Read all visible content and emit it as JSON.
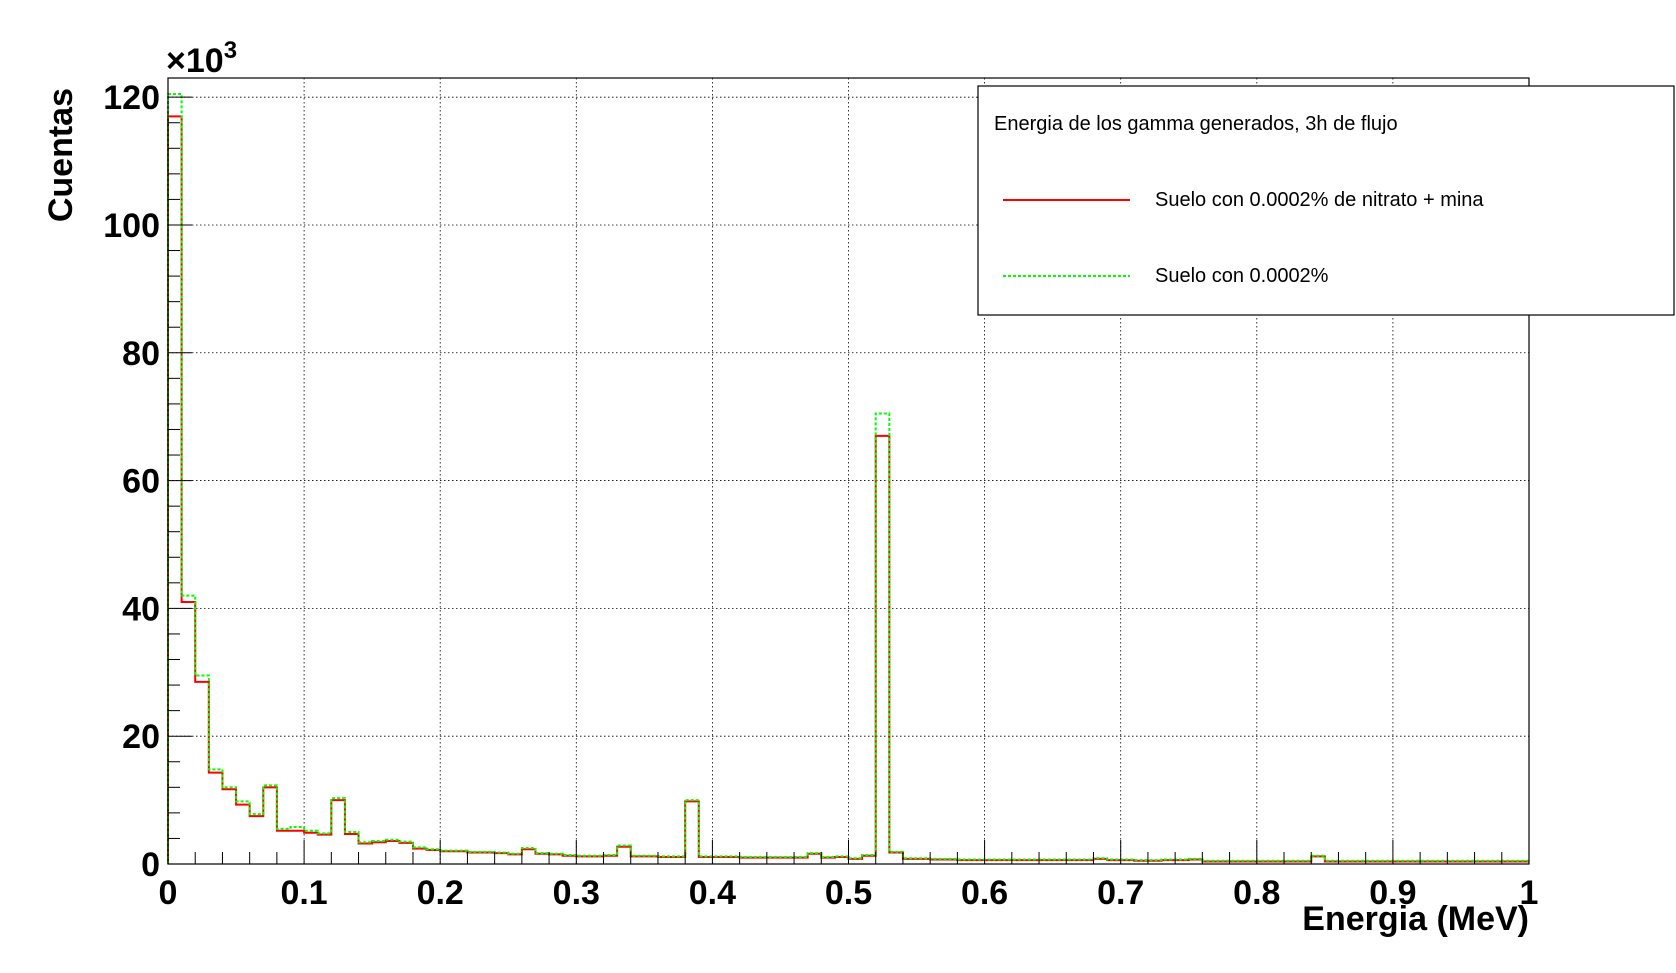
{
  "chart_data": {
    "type": "line",
    "step": true,
    "xlabel": "Energia (MeV)",
    "ylabel": "Cuentas",
    "y_multiplier_label": "×10",
    "y_multiplier_exponent": "3",
    "xlim": [
      0,
      1
    ],
    "ylim": [
      0,
      123
    ],
    "grid": true,
    "legend_position": "top-right",
    "x_ticks": [
      0,
      0.1,
      0.2,
      0.3,
      0.4,
      0.5,
      0.6,
      0.7,
      0.8,
      0.9,
      1
    ],
    "x_tick_labels": [
      "0",
      "0.1",
      "0.2",
      "0.3",
      "0.4",
      "0.5",
      "0.6",
      "0.7",
      "0.8",
      "0.9",
      "1"
    ],
    "y_ticks": [
      0,
      20,
      40,
      60,
      80,
      100,
      120
    ],
    "y_tick_labels": [
      "0",
      "20",
      "40",
      "60",
      "80",
      "100",
      "120"
    ],
    "legend": {
      "title": "Energia de los gamma generados, 3h de flujo"
    },
    "bin_edges_start": 0,
    "bin_width": 0.01,
    "series": [
      {
        "name": "Suelo con 0.0002% de nitrato + mina",
        "color": "#ff0000",
        "dash": "solid",
        "values": [
          117,
          41,
          28.5,
          14.3,
          11.7,
          9.3,
          7.5,
          12,
          5.2,
          5.2,
          4.9,
          4.6,
          10,
          4.7,
          3.2,
          3.4,
          3.6,
          3.3,
          2.4,
          2.2,
          2,
          2,
          1.8,
          1.8,
          1.7,
          1.5,
          2.3,
          1.6,
          1.5,
          1.3,
          1.2,
          1.2,
          1.3,
          2.7,
          1.2,
          1.2,
          1.1,
          1.1,
          9.8,
          1.1,
          1.1,
          1.1,
          1,
          1,
          1,
          1,
          1,
          1.6,
          1,
          1.1,
          0.8,
          1.3,
          67,
          1.8,
          0.8,
          0.8,
          0.7,
          0.7,
          0.6,
          0.6,
          0.6,
          0.6,
          0.6,
          0.6,
          0.6,
          0.6,
          0.6,
          0.6,
          0.8,
          0.6,
          0.6,
          0.5,
          0.5,
          0.6,
          0.6,
          0.7,
          0.4,
          0.4,
          0.4,
          0.4,
          0.4,
          0.4,
          0.4,
          0.4,
          1.2,
          0.4,
          0.4,
          0.4,
          0.4,
          0.4,
          0.4,
          0.4,
          0.4,
          0.4,
          0.4,
          0.4,
          0.4,
          0.4,
          0.4,
          0.4
        ]
      },
      {
        "name": "Suelo con 0.0002%",
        "color": "#00ff00",
        "dash": "dotted",
        "values": [
          120.5,
          42,
          29.5,
          14.8,
          12,
          9.8,
          7.8,
          12.3,
          5.5,
          5.8,
          5.2,
          4.8,
          10.3,
          5,
          3.4,
          3.6,
          3.8,
          3.5,
          2.6,
          2.3,
          2.1,
          2.1,
          1.9,
          1.9,
          1.8,
          1.6,
          2.5,
          1.7,
          1.6,
          1.4,
          1.3,
          1.3,
          1.4,
          2.9,
          1.3,
          1.3,
          1.2,
          1.2,
          10,
          1.2,
          1.2,
          1.2,
          1.1,
          1.1,
          1.1,
          1.1,
          1.1,
          1.7,
          1.1,
          1.2,
          0.9,
          1.4,
          70.5,
          1.9,
          0.9,
          0.9,
          0.8,
          0.8,
          0.7,
          0.7,
          0.7,
          0.7,
          0.7,
          0.7,
          0.7,
          0.7,
          0.7,
          0.7,
          0.9,
          0.7,
          0.7,
          0.6,
          0.6,
          0.7,
          0.7,
          0.8,
          0.5,
          0.5,
          0.5,
          0.5,
          0.5,
          0.5,
          0.5,
          0.5,
          1.3,
          0.5,
          0.5,
          0.5,
          0.5,
          0.5,
          0.5,
          0.5,
          0.5,
          0.5,
          0.5,
          0.5,
          0.5,
          0.5,
          0.5,
          0.5
        ]
      }
    ]
  }
}
